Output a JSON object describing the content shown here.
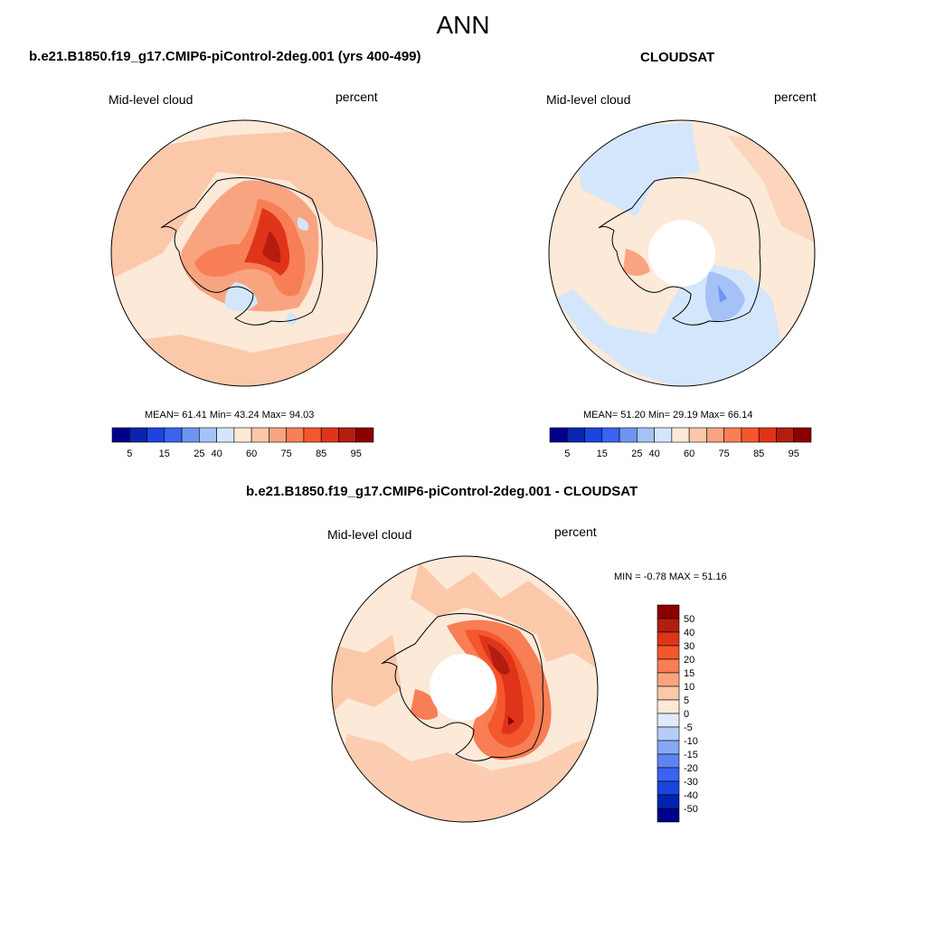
{
  "main_title": "ANN",
  "colors": {
    "abs_levels": [
      "#00008b",
      "#0b24b0",
      "#1a44dd",
      "#3a64f0",
      "#6f94f2",
      "#a5c2f6",
      "#d4e6fb",
      "#fde9d8",
      "#fbc8aa",
      "#f9a480",
      "#f87e55",
      "#f4572c",
      "#e0341a",
      "#b31d10",
      "#8b0000"
    ],
    "diff_levels": [
      "#00008b",
      "#0024b0",
      "#1a44dd",
      "#3a64f0",
      "#5d83f3",
      "#87a7f5",
      "#b6cdf8",
      "#dfeafc",
      "#fde9d8",
      "#fbc8aa",
      "#f9a480",
      "#f87e55",
      "#f4572c",
      "#e0341a",
      "#b31d10",
      "#8b0000"
    ]
  },
  "panels": {
    "model": {
      "title": "b.e21.B1850.f19_g17.CMIP6-piControl-2deg.001 (yrs 400-499)",
      "left_label": "Mid-level cloud",
      "right_label": "percent",
      "stats": "MEAN=  61.41   Min=  43.24   Max=  94.03",
      "colorbar_labels": [
        "5",
        "15",
        "25",
        "40",
        "60",
        "75",
        "85",
        "95"
      ]
    },
    "obs": {
      "title": "CLOUDSAT",
      "left_label": "Mid-level cloud",
      "right_label": "percent",
      "stats": "MEAN=  51.20   Min=  29.19   Max=  66.14",
      "colorbar_labels": [
        "5",
        "15",
        "25",
        "40",
        "60",
        "75",
        "85",
        "95"
      ]
    },
    "diff": {
      "title": "b.e21.B1850.f19_g17.CMIP6-piControl-2deg.001 - CLOUDSAT",
      "left_label": "Mid-level cloud",
      "right_label": "percent",
      "stats": "MIN =  -0.78 MAX =  51.16",
      "colorbar_labels": [
        "50",
        "40",
        "30",
        "20",
        "15",
        "10",
        "5",
        "0",
        "-5",
        "-10",
        "-15",
        "-20",
        "-30",
        "-40",
        "-50"
      ]
    }
  }
}
